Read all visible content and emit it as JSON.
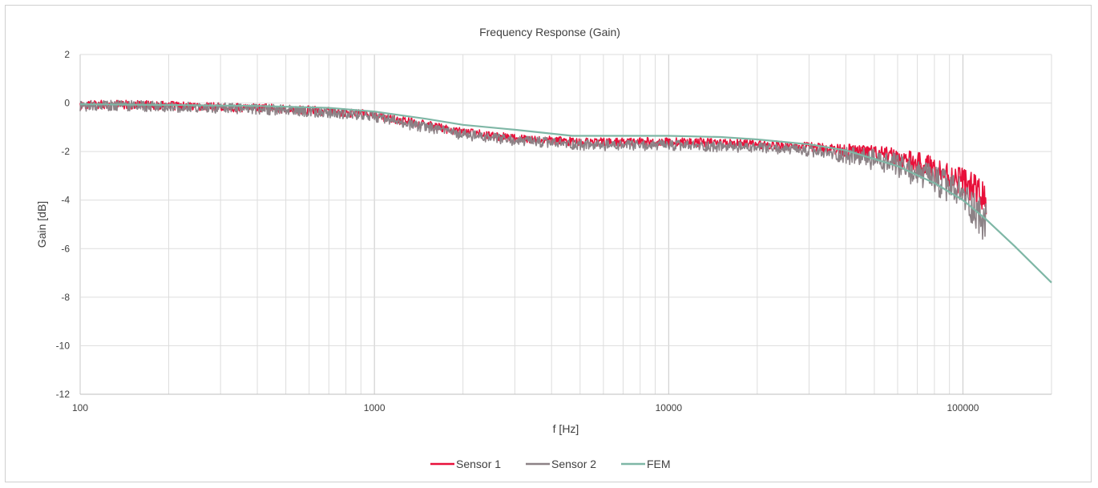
{
  "chart_data": {
    "type": "line",
    "title": "Frequency Response (Gain)",
    "xlabel": "f [Hz]",
    "ylabel": "Gain [dB]",
    "x_scale": "log",
    "xlim": [
      100,
      200000
    ],
    "ylim": [
      -12,
      2
    ],
    "x_tick_labels": [
      "100",
      "1000",
      "10000",
      "100000"
    ],
    "x_tick_values": [
      100,
      1000,
      10000,
      100000
    ],
    "y_tick_values": [
      2,
      0,
      -2,
      -4,
      -6,
      -8,
      -10,
      -12
    ],
    "y_tick_labels": [
      "2",
      "0",
      "-2",
      "-4",
      "-6",
      "-8",
      "-10",
      "-12"
    ],
    "grid": true,
    "legend_position": "bottom",
    "series": [
      {
        "name": "Sensor 1",
        "color": "#e8103a",
        "x": [
          100,
          130,
          160,
          200,
          250,
          300,
          350,
          400,
          500,
          600,
          700,
          800,
          900,
          1000,
          1200,
          1500,
          1800,
          2000,
          2500,
          3000,
          4000,
          5000,
          6000,
          8000,
          10000,
          13000,
          16000,
          20000,
          25000,
          30000,
          40000,
          50000,
          60000,
          70000,
          80000,
          90000,
          100000,
          110000,
          120000
        ],
        "values": [
          -0.1,
          -0.05,
          -0.08,
          -0.1,
          -0.15,
          -0.15,
          -0.2,
          -0.2,
          -0.25,
          -0.3,
          -0.35,
          -0.4,
          -0.45,
          -0.5,
          -0.7,
          -0.9,
          -1.1,
          -1.2,
          -1.35,
          -1.45,
          -1.55,
          -1.6,
          -1.62,
          -1.6,
          -1.6,
          -1.62,
          -1.65,
          -1.7,
          -1.75,
          -1.8,
          -1.95,
          -2.1,
          -2.3,
          -2.5,
          -2.7,
          -3.0,
          -3.2,
          -3.6,
          -4.0
        ],
        "noise": 0.18
      },
      {
        "name": "Sensor 2",
        "color": "#8c8286",
        "x": [
          100,
          130,
          160,
          200,
          250,
          300,
          350,
          400,
          500,
          600,
          700,
          800,
          900,
          1000,
          1200,
          1500,
          1800,
          2000,
          2500,
          3000,
          4000,
          5000,
          6000,
          8000,
          10000,
          13000,
          16000,
          20000,
          25000,
          30000,
          40000,
          50000,
          60000,
          70000,
          80000,
          90000,
          100000,
          110000,
          120000
        ],
        "values": [
          -0.12,
          -0.1,
          -0.12,
          -0.15,
          -0.2,
          -0.2,
          -0.25,
          -0.25,
          -0.3,
          -0.35,
          -0.4,
          -0.45,
          -0.5,
          -0.55,
          -0.8,
          -1.0,
          -1.2,
          -1.3,
          -1.45,
          -1.55,
          -1.65,
          -1.72,
          -1.75,
          -1.75,
          -1.75,
          -1.78,
          -1.8,
          -1.85,
          -1.9,
          -2.0,
          -2.15,
          -2.35,
          -2.6,
          -2.9,
          -3.2,
          -3.5,
          -3.8,
          -4.4,
          -5.0
        ],
        "noise": 0.22
      },
      {
        "name": "FEM",
        "color": "#7fb7a6",
        "x": [
          100,
          200,
          400,
          700,
          1000,
          1500,
          2000,
          3000,
          4700,
          7000,
          10000,
          15000,
          20000,
          30000,
          40000,
          60000,
          80000,
          100000,
          120000,
          150000,
          200000
        ],
        "values": [
          -0.05,
          -0.08,
          -0.12,
          -0.2,
          -0.35,
          -0.65,
          -0.9,
          -1.1,
          -1.35,
          -1.35,
          -1.35,
          -1.4,
          -1.5,
          -1.7,
          -1.95,
          -2.6,
          -3.3,
          -4.0,
          -4.8,
          -5.9,
          -7.4
        ]
      }
    ]
  }
}
